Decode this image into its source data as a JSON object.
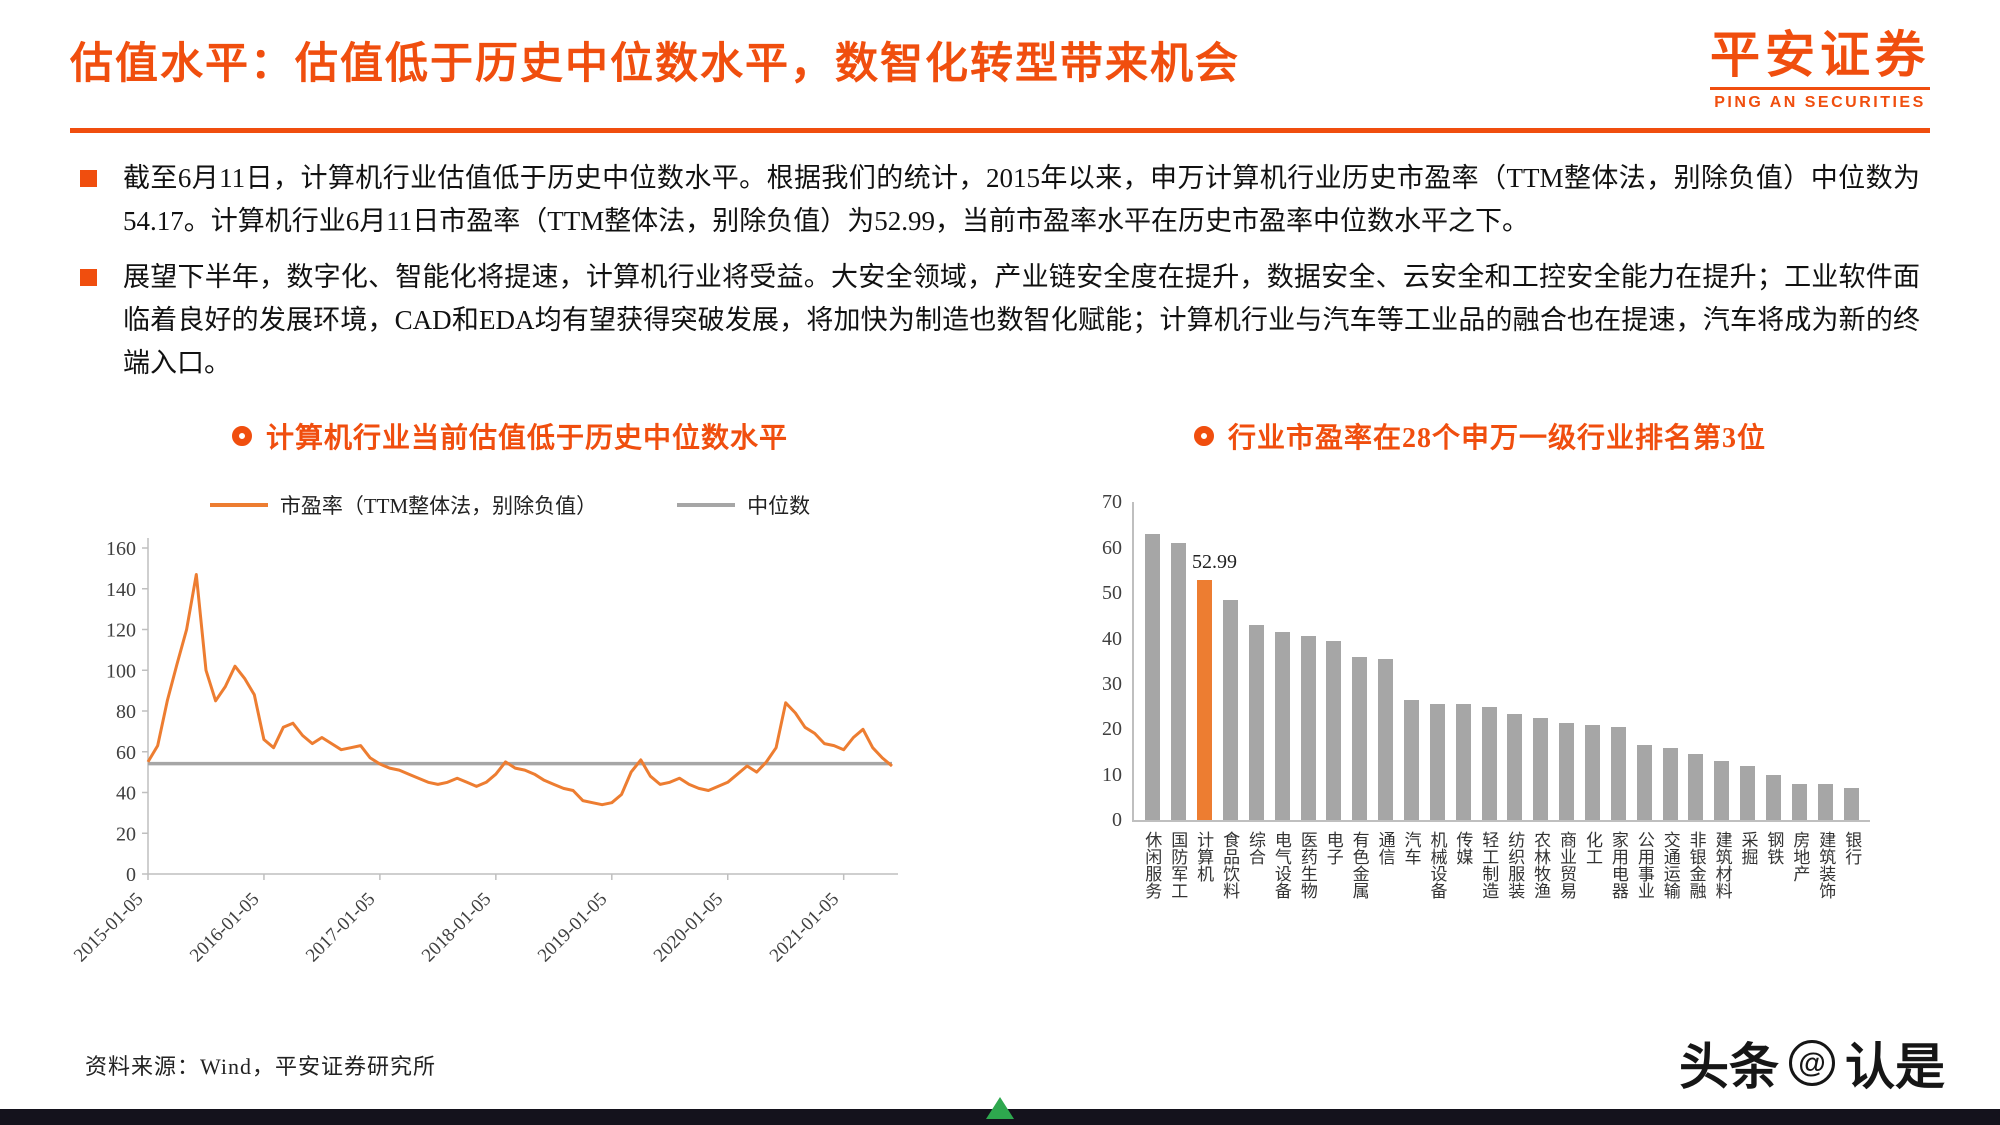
{
  "header": {
    "title": "估值水平：估值低于历史中位数水平，数智化转型带来机会",
    "logo_cn": "平安证券",
    "logo_en": "PING AN SECURITIES"
  },
  "bullets": [
    "截至6月11日，计算机行业估值低于历史中位数水平。根据我们的统计，2015年以来，申万计算机行业历史市盈率（TTM整体法，别除负值）中位数为54.17。计算机行业6月11日市盈率（TTM整体法，别除负值）为52.99，当前市盈率水平在历史市盈率中位数水平之下。",
    "展望下半年，数字化、智能化将提速，计算机行业将受益。大安全领域，产业链安全度在提升，数据安全、云安全和工控安全能力在提升；工业软件面临着良好的发展环境，CAD和EDA均有望获得突破发展，将加快为制造也数智化赋能；计算机行业与汽车等工业品的融合也在提速，汽车将成为新的终端入口。"
  ],
  "left_chart": {
    "title": "计算机行业当前估值低于历史中位数水平",
    "legend_pe": "市盈率（TTM整体法，别除负值）",
    "legend_median": "中位数"
  },
  "right_chart": {
    "title": "行业市盈率在28个申万一级行业排名第3位"
  },
  "chart_data": [
    {
      "type": "line",
      "title": "计算机行业当前估值低于历史中位数水平",
      "ylim": [
        0,
        160
      ],
      "y_step": 20,
      "x_tick_labels": [
        "2015-01-05",
        "2016-01-05",
        "2017-01-05",
        "2018-01-05",
        "2019-01-05",
        "2020-01-05",
        "2021-01-05"
      ],
      "x_tick_positions": [
        0,
        12,
        24,
        36,
        48,
        60,
        72
      ],
      "legend_position": "top",
      "grid": false,
      "series": [
        {
          "name": "市盈率（TTM整体法，别除负值）",
          "color": "#ED7D31",
          "values": [
            55,
            63,
            85,
            103,
            120,
            147,
            100,
            85,
            92,
            102,
            96,
            88,
            66,
            62,
            72,
            74,
            68,
            64,
            67,
            64,
            61,
            62,
            63,
            57,
            54,
            52,
            51,
            49,
            47,
            45,
            44,
            45,
            47,
            45,
            43,
            45,
            49,
            55,
            52,
            51,
            49,
            46,
            44,
            42,
            41,
            36,
            35,
            34,
            35,
            39,
            50,
            56,
            48,
            44,
            45,
            47,
            44,
            42,
            41,
            43,
            45,
            49,
            53,
            50,
            55,
            62,
            84,
            79,
            72,
            69,
            64,
            63,
            61,
            67,
            71,
            62,
            57,
            52.99
          ]
        },
        {
          "name": "中位数",
          "color": "#A6A6A6",
          "value": 54.17
        }
      ]
    },
    {
      "type": "bar",
      "title": "行业市盈率在28个申万一级行业排名第3位",
      "ylim": [
        0,
        70
      ],
      "y_step": 10,
      "bar_color": "#A6A6A6",
      "highlight_category": "计算机",
      "highlight_color": "#ED7D31",
      "data_label": {
        "category": "计算机",
        "text": "52.99"
      },
      "categories": [
        "休闲服务",
        "国防军工",
        "计算机",
        "食品饮料",
        "综合",
        "电气设备",
        "医药生物",
        "电子",
        "有色金属",
        "通信",
        "汽车",
        "机械设备",
        "传媒",
        "轻工制造",
        "纺织服装",
        "农林牧渔",
        "商业贸易",
        "化工",
        "家用电器",
        "公用事业",
        "交通运输",
        "非银金融",
        "建筑材料",
        "采掘",
        "钢铁",
        "房地产",
        "建筑装饰",
        "银行"
      ],
      "values": [
        63,
        61,
        52.99,
        48.5,
        43,
        41.5,
        40.5,
        39.5,
        36,
        35.5,
        26.5,
        25.5,
        25.5,
        25,
        23.5,
        22.5,
        21.5,
        21,
        20.5,
        16.5,
        16,
        14.5,
        13,
        12,
        10,
        8,
        8,
        7
      ]
    }
  ],
  "footer": {
    "source": "资料来源：Wind，平安证券研究所"
  },
  "watermark": {
    "prefix": "头条",
    "at": "@",
    "handle": "认是"
  },
  "colors": {
    "brand_orange": "#F04E0E",
    "series_orange": "#ED7D31",
    "gray": "#A6A6A6",
    "axis_gray": "#BFBFBF",
    "bottom_bar": "#14121C",
    "green_mark": "#2EA84E"
  }
}
